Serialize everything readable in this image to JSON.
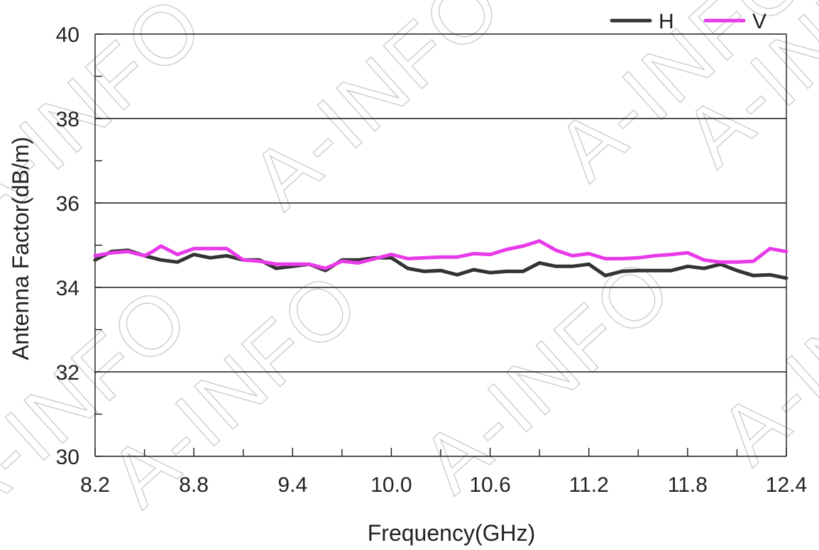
{
  "chart_data": {
    "type": "line",
    "xlabel": "Frequency(GHz)",
    "ylabel": "Antenna Factor(dB/m)",
    "xlim": [
      8.2,
      12.4
    ],
    "ylim": [
      30,
      40
    ],
    "x_ticks": [
      "8.2",
      "8.8",
      "9.4",
      "10.0",
      "10.6",
      "11.2",
      "11.8",
      "12.4"
    ],
    "y_ticks": [
      "30",
      "32",
      "34",
      "36",
      "38",
      "40"
    ],
    "grid": "horizontal",
    "legend_position": "top-right",
    "watermark": "A-INFO",
    "series": [
      {
        "name": "H",
        "color": "#333333",
        "x": [
          8.2,
          8.3,
          8.4,
          8.5,
          8.6,
          8.7,
          8.8,
          8.9,
          9.0,
          9.1,
          9.2,
          9.3,
          9.4,
          9.5,
          9.6,
          9.7,
          9.8,
          9.9,
          10.0,
          10.1,
          10.2,
          10.3,
          10.4,
          10.5,
          10.6,
          10.7,
          10.8,
          10.9,
          11.0,
          11.1,
          11.2,
          11.3,
          11.4,
          11.5,
          11.6,
          11.7,
          11.8,
          11.9,
          12.0,
          12.1,
          12.2,
          12.3,
          12.4
        ],
        "y": [
          34.65,
          34.85,
          34.88,
          34.75,
          34.65,
          34.6,
          34.78,
          34.7,
          34.75,
          34.65,
          34.65,
          34.45,
          34.5,
          34.55,
          34.4,
          34.65,
          34.65,
          34.7,
          34.7,
          34.45,
          34.38,
          34.4,
          34.3,
          34.42,
          34.35,
          34.38,
          34.38,
          34.58,
          34.5,
          34.5,
          34.55,
          34.28,
          34.38,
          34.4,
          34.4,
          34.4,
          34.5,
          34.45,
          34.55,
          34.4,
          34.28,
          34.3,
          34.22
        ]
      },
      {
        "name": "V",
        "color": "#e83ae8",
        "x": [
          8.2,
          8.3,
          8.4,
          8.5,
          8.55,
          8.6,
          8.7,
          8.8,
          8.9,
          9.0,
          9.1,
          9.2,
          9.3,
          9.4,
          9.5,
          9.6,
          9.7,
          9.8,
          9.9,
          10.0,
          10.1,
          10.2,
          10.3,
          10.4,
          10.5,
          10.6,
          10.7,
          10.8,
          10.9,
          11.0,
          11.1,
          11.2,
          11.3,
          11.4,
          11.5,
          11.6,
          11.7,
          11.8,
          11.9,
          12.0,
          12.1,
          12.2,
          12.3,
          12.4
        ],
        "y": [
          34.75,
          34.82,
          34.85,
          34.75,
          34.85,
          34.98,
          34.78,
          34.92,
          34.92,
          34.92,
          34.65,
          34.62,
          34.55,
          34.55,
          34.55,
          34.45,
          34.62,
          34.58,
          34.68,
          34.78,
          34.68,
          34.7,
          34.72,
          34.72,
          34.8,
          34.78,
          34.9,
          34.98,
          35.1,
          34.88,
          34.75,
          34.8,
          34.68,
          34.68,
          34.7,
          34.75,
          34.78,
          34.82,
          34.65,
          34.6,
          34.6,
          34.62,
          34.92,
          34.85
        ]
      }
    ]
  }
}
